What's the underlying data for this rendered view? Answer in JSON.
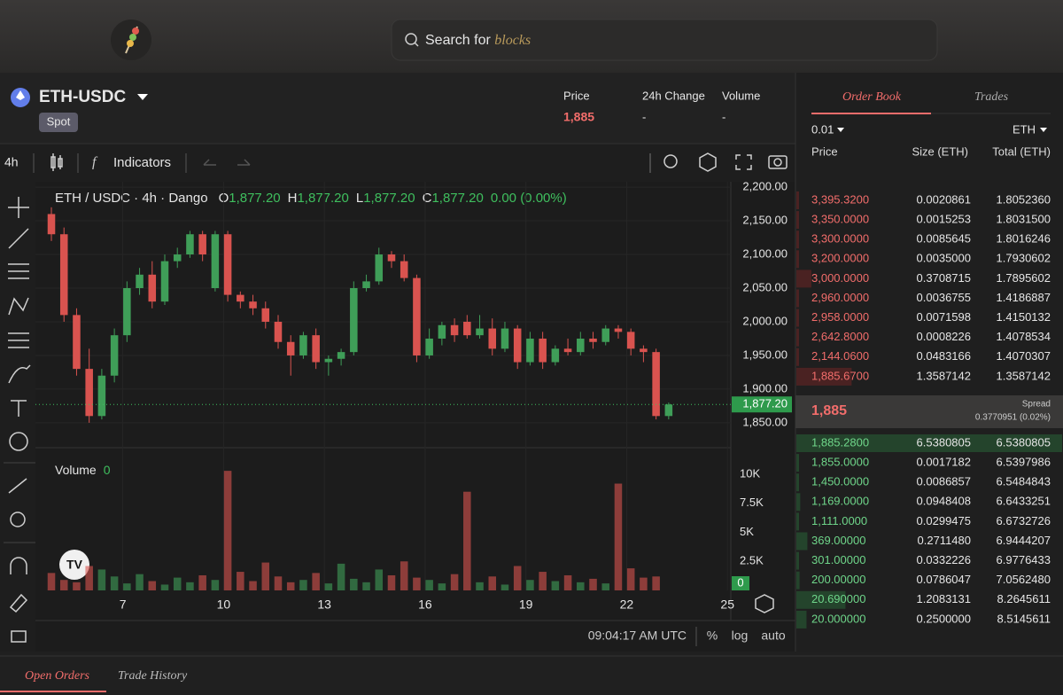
{
  "header": {
    "search_placeholder": "Search for",
    "search_highlight": "blocks"
  },
  "market": {
    "pair": "ETH-USDC",
    "badge": "Spot",
    "price_label": "Price",
    "price": "1,885",
    "change_label": "24h Change",
    "change": "-",
    "volume_label": "Volume",
    "volume": "-"
  },
  "toolbar": {
    "interval": "4h",
    "indicators": "Indicators"
  },
  "chart_data": {
    "type": "candlestick",
    "title": "ETH / USDC · 4h · Dango",
    "ohlc_labels": [
      "O",
      "H",
      "L",
      "C"
    ],
    "ohlc_values": [
      "1,877.20",
      "1,877.20",
      "1,877.20",
      "1,877.20"
    ],
    "change": "0.00 (0.00%)",
    "x": [
      4.875,
      5.25,
      5.625,
      6,
      6.375,
      6.75,
      7.125,
      7.5,
      7.875,
      8.25,
      8.625,
      9,
      9.375,
      9.75,
      10.125,
      10.5,
      10.875,
      11.25,
      11.625,
      12,
      12.375,
      12.75,
      13.125,
      13.5,
      13.875,
      14.25,
      14.625,
      15,
      15.375,
      15.75,
      16.125,
      16.5,
      16.875,
      17.25,
      17.625,
      18,
      18.375,
      18.75,
      19.125,
      19.5,
      19.875,
      20.25,
      20.625,
      21,
      21.375,
      21.75,
      22.125,
      22.5,
      22.875,
      23.25
    ],
    "open": [
      2160,
      2130,
      2010,
      1930,
      1860,
      1920,
      1980,
      2050,
      2070,
      2030,
      2090,
      2100,
      2130,
      2050,
      2130,
      2040,
      2030,
      2020,
      2000,
      1970,
      1950,
      1980,
      1940,
      1945,
      1955,
      2050,
      2060,
      2100,
      2090,
      2065,
      1950,
      1975,
      1995,
      2000,
      1980,
      1990,
      1960,
      1990,
      1940,
      1975,
      1940,
      1960,
      1955,
      1975,
      1970,
      1990,
      1985,
      1960,
      1955,
      1860
    ],
    "high": [
      2170,
      2140,
      2020,
      1960,
      1930,
      1990,
      2060,
      2080,
      2090,
      2100,
      2110,
      2135,
      2135,
      2135,
      2135,
      2045,
      2040,
      2030,
      2010,
      1980,
      1985,
      1990,
      1950,
      1960,
      2060,
      2070,
      2110,
      2105,
      2100,
      2070,
      1990,
      2000,
      2005,
      2010,
      2010,
      2005,
      2000,
      1995,
      1985,
      1985,
      1965,
      1975,
      1985,
      1985,
      1995,
      1995,
      1990,
      1965,
      1960,
      1880
    ],
    "low": [
      2120,
      2000,
      1920,
      1850,
      1855,
      1910,
      1970,
      2040,
      2020,
      2025,
      2080,
      2095,
      2090,
      2045,
      2030,
      2020,
      2010,
      1990,
      1960,
      1920,
      1945,
      1930,
      1920,
      1935,
      1950,
      2045,
      2055,
      2080,
      2060,
      1940,
      1945,
      1965,
      1970,
      1975,
      1975,
      1950,
      1955,
      1930,
      1935,
      1930,
      1935,
      1950,
      1950,
      1960,
      1965,
      1975,
      1950,
      1940,
      1855,
      1855
    ],
    "close": [
      2130,
      2010,
      1930,
      1860,
      1920,
      1980,
      2050,
      2070,
      2030,
      2090,
      2100,
      2130,
      2100,
      2130,
      2040,
      2030,
      2020,
      2000,
      1970,
      1950,
      1980,
      1940,
      1945,
      1955,
      2050,
      2060,
      2100,
      2090,
      2065,
      1950,
      1975,
      1995,
      1980,
      1980,
      1990,
      1960,
      1990,
      1940,
      1975,
      1940,
      1960,
      1955,
      1975,
      1970,
      1990,
      1985,
      1960,
      1955,
      1860,
      1877.2
    ],
    "xlim": [
      4.4,
      25.1
    ],
    "xticks": [
      7,
      10,
      13,
      16,
      19,
      22,
      25
    ],
    "ylim": [
      1813,
      2208
    ],
    "yticks": [
      {
        "value": 1850,
        "label": "1,850.00"
      },
      {
        "value": 1900,
        "label": "1,900.00"
      },
      {
        "value": 1950,
        "label": "1,950.00"
      },
      {
        "value": 2000,
        "label": "2,000.00"
      },
      {
        "value": 2050,
        "label": "2,050.00"
      },
      {
        "value": 2100,
        "label": "2,100.00"
      },
      {
        "value": 2150,
        "label": "2,150.00"
      },
      {
        "value": 2200,
        "label": "2,200.00"
      }
    ],
    "last_price": {
      "value": 1877.2,
      "label": "1,877.20"
    },
    "volume_title": "Volume",
    "volume_last": 0,
    "volumes": [
      1500,
      900,
      700,
      2100,
      1800,
      1200,
      600,
      1400,
      800,
      500,
      1100,
      700,
      1300,
      900,
      10300,
      1600,
      800,
      2400,
      1200,
      700,
      900,
      1500,
      600,
      2300,
      1000,
      700,
      1800,
      1300,
      2500,
      1100,
      900,
      600,
      1400,
      8500,
      700,
      1200,
      500,
      2100,
      900,
      1600,
      800,
      1300,
      700,
      1000,
      600,
      9200,
      1900,
      1100,
      1200,
      0
    ],
    "vlim": [
      0,
      11150
    ],
    "vticks": [
      {
        "value": 2500,
        "label": "2.5K"
      },
      {
        "value": 5000,
        "label": "5K"
      },
      {
        "value": 7500,
        "label": "7.5K"
      },
      {
        "value": 10000,
        "label": "10K"
      }
    ],
    "up_color": "#3f9e58",
    "down_color": "#d9534f"
  },
  "chart_footer": {
    "time": "09:04:17 AM UTC",
    "scale_options": [
      "%",
      "log",
      "auto"
    ]
  },
  "order_book": {
    "tabs": [
      "Order Book",
      "Trades"
    ],
    "tick_size": "0.01",
    "unit": "ETH",
    "columns": [
      "Price",
      "Size (ETH)",
      "Total (ETH)"
    ],
    "asks": [
      [
        "3,395.3200",
        "0.0020861",
        "1.8052360"
      ],
      [
        "3,350.0000",
        "0.0015253",
        "1.8031500"
      ],
      [
        "3,300.0000",
        "0.0085645",
        "1.8016246"
      ],
      [
        "3,200.0000",
        "0.0035000",
        "1.7930602"
      ],
      [
        "3,000.0000",
        "0.3708715",
        "1.7895602"
      ],
      [
        "2,960.0000",
        "0.0036755",
        "1.4186887"
      ],
      [
        "2,958.0000",
        "0.0071598",
        "1.4150132"
      ],
      [
        "2,642.8000",
        "0.0008226",
        "1.4078534"
      ],
      [
        "2,144.0600",
        "0.0483166",
        "1.4070307"
      ],
      [
        "1,885.6700",
        "1.3587142",
        "1.3587142"
      ]
    ],
    "spread": {
      "price": "1,885",
      "label": "Spread",
      "value": "0.3770951 (0.02%)"
    },
    "bids": [
      [
        "1,885.2800",
        "6.5380805",
        "6.5380805"
      ],
      [
        "1,855.0000",
        "0.0017182",
        "6.5397986"
      ],
      [
        "1,450.0000",
        "0.0086857",
        "6.5484843"
      ],
      [
        "1,169.0000",
        "0.0948408",
        "6.6433251"
      ],
      [
        "1,111.0000",
        "0.0299475",
        "6.6732726"
      ],
      [
        "369.00000",
        "0.2711480",
        "6.9444207"
      ],
      [
        "301.00000",
        "0.0332226",
        "6.9776433"
      ],
      [
        "200.00000",
        "0.0786047",
        "7.0562480"
      ],
      [
        "20.690000",
        "1.2083131",
        "8.2645611"
      ],
      [
        "20.000000",
        "0.2500000",
        "8.5145611"
      ]
    ]
  },
  "bottom_tabs": [
    "Open Orders",
    "Trade History"
  ]
}
